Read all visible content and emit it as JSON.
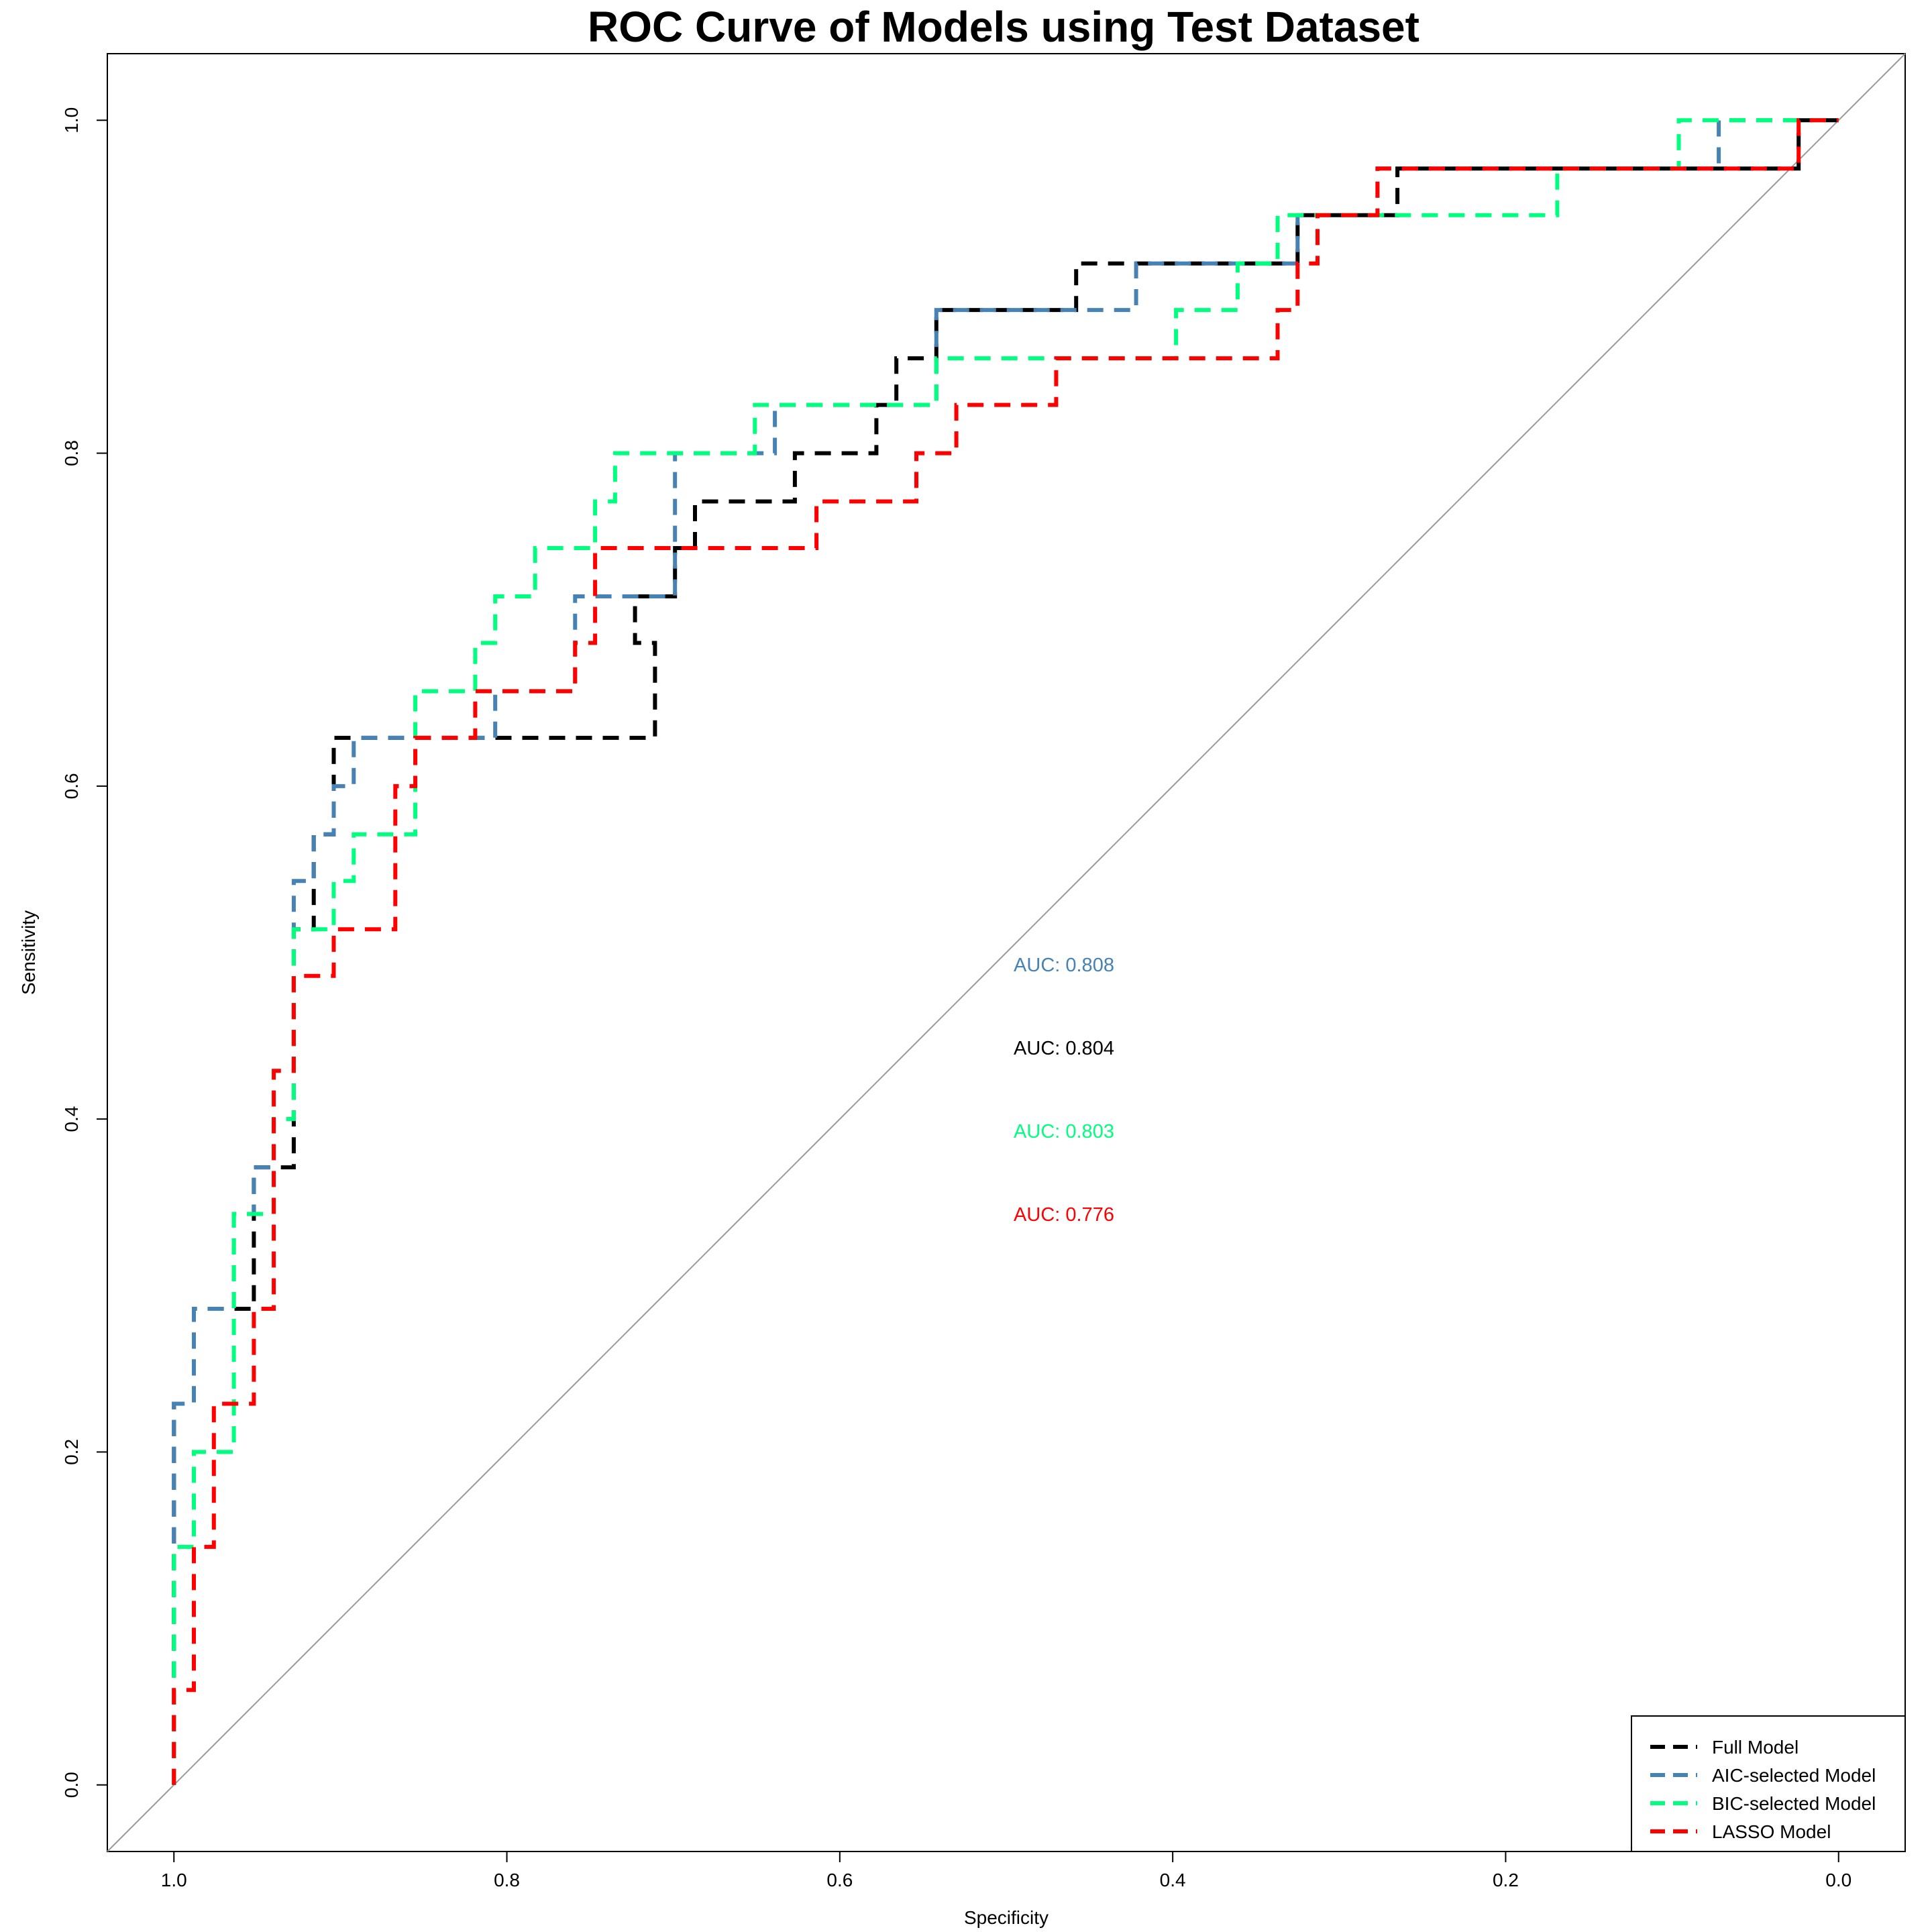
{
  "chart_data": {
    "type": "line",
    "title": "ROC Curve of Models using Test Dataset",
    "xlabel": "Specificity",
    "ylabel": "Sensitivity",
    "xlim": [
      1.04,
      -0.04
    ],
    "ylim": [
      -0.04,
      1.04
    ],
    "x_reversed": true,
    "x_ticks": [
      "1.0",
      "0.8",
      "0.6",
      "0.4",
      "0.2",
      "0.0"
    ],
    "y_ticks": [
      "0.0",
      "0.2",
      "0.4",
      "0.6",
      "0.8",
      "1.0"
    ],
    "grid": false,
    "legend_position": "bottom-right",
    "reference_line": {
      "from": [
        1.0,
        0.0
      ],
      "to": [
        0.0,
        1.0
      ],
      "color": "#999999"
    },
    "series": [
      {
        "name": "Full Model",
        "color": "#000000",
        "points": [
          [
            1.0,
            0.0
          ],
          [
            1.0,
            0.229
          ],
          [
            0.988,
            0.229
          ],
          [
            0.988,
            0.286
          ],
          [
            0.952,
            0.286
          ],
          [
            0.952,
            0.371
          ],
          [
            0.928,
            0.371
          ],
          [
            0.928,
            0.514
          ],
          [
            0.916,
            0.514
          ],
          [
            0.916,
            0.571
          ],
          [
            0.904,
            0.571
          ],
          [
            0.904,
            0.629
          ],
          [
            0.711,
            0.629
          ],
          [
            0.711,
            0.686
          ],
          [
            0.723,
            0.686
          ],
          [
            0.723,
            0.714
          ],
          [
            0.699,
            0.714
          ],
          [
            0.699,
            0.743
          ],
          [
            0.687,
            0.743
          ],
          [
            0.687,
            0.771
          ],
          [
            0.627,
            0.771
          ],
          [
            0.627,
            0.8
          ],
          [
            0.578,
            0.8
          ],
          [
            0.578,
            0.829
          ],
          [
            0.566,
            0.829
          ],
          [
            0.566,
            0.857
          ],
          [
            0.542,
            0.857
          ],
          [
            0.542,
            0.886
          ],
          [
            0.458,
            0.886
          ],
          [
            0.458,
            0.914
          ],
          [
            0.325,
            0.914
          ],
          [
            0.325,
            0.943
          ],
          [
            0.265,
            0.943
          ],
          [
            0.265,
            0.971
          ],
          [
            0.024,
            0.971
          ],
          [
            0.024,
            1.0
          ],
          [
            0.0,
            1.0
          ]
        ]
      },
      {
        "name": "AIC-selected Model",
        "color": "#4682B4",
        "points": [
          [
            1.0,
            0.0
          ],
          [
            1.0,
            0.229
          ],
          [
            0.988,
            0.229
          ],
          [
            0.988,
            0.286
          ],
          [
            0.964,
            0.286
          ],
          [
            0.964,
            0.343
          ],
          [
            0.952,
            0.343
          ],
          [
            0.952,
            0.371
          ],
          [
            0.94,
            0.371
          ],
          [
            0.94,
            0.4
          ],
          [
            0.928,
            0.4
          ],
          [
            0.928,
            0.543
          ],
          [
            0.916,
            0.543
          ],
          [
            0.916,
            0.571
          ],
          [
            0.904,
            0.571
          ],
          [
            0.904,
            0.6
          ],
          [
            0.892,
            0.6
          ],
          [
            0.892,
            0.629
          ],
          [
            0.807,
            0.629
          ],
          [
            0.807,
            0.657
          ],
          [
            0.759,
            0.657
          ],
          [
            0.759,
            0.714
          ],
          [
            0.699,
            0.714
          ],
          [
            0.699,
            0.8
          ],
          [
            0.639,
            0.8
          ],
          [
            0.639,
            0.829
          ],
          [
            0.542,
            0.829
          ],
          [
            0.542,
            0.886
          ],
          [
            0.422,
            0.886
          ],
          [
            0.422,
            0.914
          ],
          [
            0.325,
            0.914
          ],
          [
            0.325,
            0.943
          ],
          [
            0.277,
            0.943
          ],
          [
            0.277,
            0.971
          ],
          [
            0.072,
            0.971
          ],
          [
            0.072,
            1.0
          ],
          [
            0.0,
            1.0
          ]
        ]
      },
      {
        "name": "BIC-selected Model",
        "color": "#00FF7F",
        "points": [
          [
            1.0,
            0.0
          ],
          [
            1.0,
            0.143
          ],
          [
            0.988,
            0.143
          ],
          [
            0.988,
            0.2
          ],
          [
            0.964,
            0.2
          ],
          [
            0.964,
            0.343
          ],
          [
            0.94,
            0.343
          ],
          [
            0.94,
            0.4
          ],
          [
            0.928,
            0.4
          ],
          [
            0.928,
            0.429
          ],
          [
            0.928,
            0.514
          ],
          [
            0.904,
            0.514
          ],
          [
            0.904,
            0.543
          ],
          [
            0.892,
            0.543
          ],
          [
            0.892,
            0.571
          ],
          [
            0.855,
            0.571
          ],
          [
            0.855,
            0.657
          ],
          [
            0.819,
            0.657
          ],
          [
            0.819,
            0.686
          ],
          [
            0.807,
            0.686
          ],
          [
            0.807,
            0.714
          ],
          [
            0.783,
            0.714
          ],
          [
            0.783,
            0.743
          ],
          [
            0.747,
            0.743
          ],
          [
            0.747,
            0.771
          ],
          [
            0.735,
            0.771
          ],
          [
            0.735,
            0.8
          ],
          [
            0.651,
            0.8
          ],
          [
            0.651,
            0.829
          ],
          [
            0.542,
            0.829
          ],
          [
            0.542,
            0.857
          ],
          [
            0.398,
            0.857
          ],
          [
            0.398,
            0.886
          ],
          [
            0.361,
            0.886
          ],
          [
            0.361,
            0.914
          ],
          [
            0.337,
            0.914
          ],
          [
            0.337,
            0.943
          ],
          [
            0.169,
            0.943
          ],
          [
            0.169,
            0.971
          ],
          [
            0.096,
            0.971
          ],
          [
            0.096,
            1.0
          ],
          [
            0.0,
            1.0
          ]
        ]
      },
      {
        "name": "LASSO Model",
        "color": "#FF0000",
        "points": [
          [
            1.0,
            0.0
          ],
          [
            1.0,
            0.057
          ],
          [
            0.988,
            0.057
          ],
          [
            0.988,
            0.143
          ],
          [
            0.976,
            0.143
          ],
          [
            0.976,
            0.229
          ],
          [
            0.952,
            0.229
          ],
          [
            0.952,
            0.286
          ],
          [
            0.94,
            0.286
          ],
          [
            0.94,
            0.429
          ],
          [
            0.928,
            0.429
          ],
          [
            0.928,
            0.486
          ],
          [
            0.904,
            0.486
          ],
          [
            0.904,
            0.514
          ],
          [
            0.867,
            0.514
          ],
          [
            0.867,
            0.6
          ],
          [
            0.855,
            0.6
          ],
          [
            0.855,
            0.629
          ],
          [
            0.819,
            0.629
          ],
          [
            0.819,
            0.657
          ],
          [
            0.759,
            0.657
          ],
          [
            0.759,
            0.686
          ],
          [
            0.747,
            0.686
          ],
          [
            0.747,
            0.743
          ],
          [
            0.614,
            0.743
          ],
          [
            0.614,
            0.771
          ],
          [
            0.554,
            0.771
          ],
          [
            0.554,
            0.8
          ],
          [
            0.53,
            0.8
          ],
          [
            0.53,
            0.829
          ],
          [
            0.47,
            0.829
          ],
          [
            0.47,
            0.857
          ],
          [
            0.337,
            0.857
          ],
          [
            0.337,
            0.886
          ],
          [
            0.325,
            0.886
          ],
          [
            0.325,
            0.914
          ],
          [
            0.313,
            0.914
          ],
          [
            0.313,
            0.943
          ],
          [
            0.277,
            0.943
          ],
          [
            0.277,
            0.971
          ],
          [
            0.024,
            0.971
          ],
          [
            0.024,
            1.0
          ],
          [
            0.0,
            1.0
          ]
        ]
      }
    ],
    "annotations": [
      {
        "text": "AUC: 0.808",
        "color": "#4682B4"
      },
      {
        "text": "AUC: 0.804",
        "color": "#000000"
      },
      {
        "text": "AUC: 0.803",
        "color": "#00FF7F"
      },
      {
        "text": "AUC: 0.776",
        "color": "#FF0000"
      }
    ],
    "legend": [
      "Full Model",
      "AIC-selected Model",
      "BIC-selected Model",
      "LASSO Model"
    ]
  }
}
